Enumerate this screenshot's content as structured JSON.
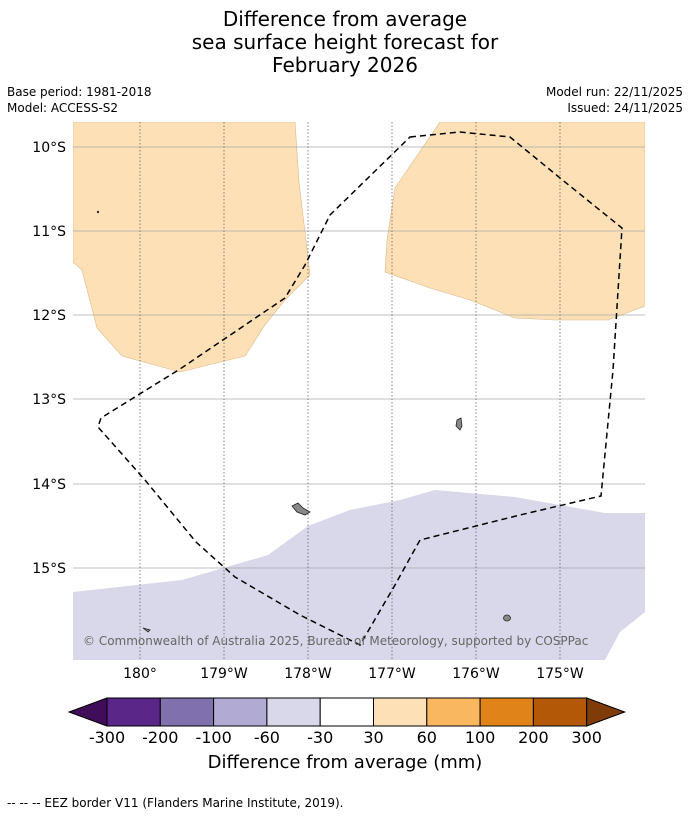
{
  "title": {
    "line1": "Difference from average",
    "line2": "sea surface height forecast for",
    "line3": "February 2026"
  },
  "meta": {
    "base_period": "Base period: 1981-2018",
    "model": "Model: ACCESS-S2",
    "model_run": "Model run: 22/11/2025",
    "issued": "Issued: 24/11/2025"
  },
  "map": {
    "lat_labels": [
      "10°S",
      "11°S",
      "12°S",
      "13°S",
      "14°S",
      "15°S"
    ],
    "lon_labels": [
      "180°",
      "179°W",
      "178°W",
      "177°W",
      "176°W",
      "175°W"
    ],
    "attribution": "© Commonwealth of Australia 2025, Bureau of Meteorology, supported by COSPPac",
    "colors": {
      "positive_light": "#fde0b5",
      "negative_light": "#d8d8ea",
      "land": "#888888"
    }
  },
  "colorbar": {
    "labels": [
      "-300",
      "-200",
      "-100",
      "-60",
      "-30",
      "30",
      "60",
      "100",
      "200",
      "300"
    ],
    "colors": [
      "#3f0d5a",
      "#5a2688",
      "#8070ad",
      "#b1abd3",
      "#d8d8ea",
      "#ffffff",
      "#fde0b5",
      "#f9b85f",
      "#e08318",
      "#b35806",
      "#7f3b08"
    ],
    "title": "Difference from average (mm)"
  },
  "footnote": "--  --  -- EEZ border V11 (Flanders Marine Institute, 2019)."
}
